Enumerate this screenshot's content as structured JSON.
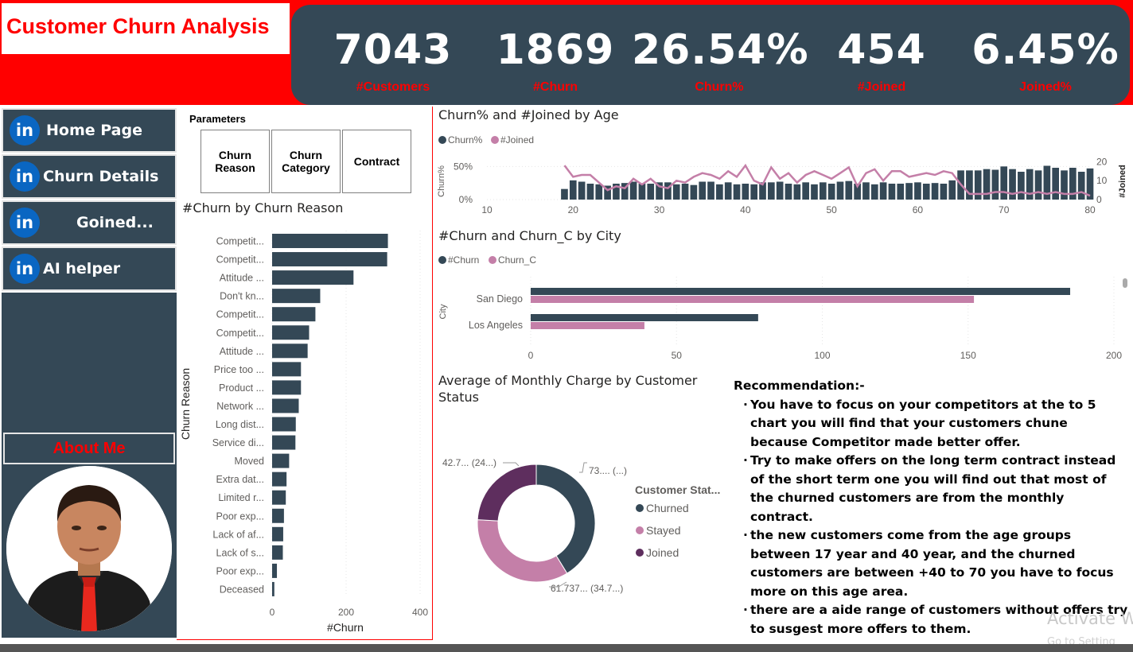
{
  "header": {
    "title": "Customer Churn Analysis",
    "kpis": [
      {
        "value": "7043",
        "label": "#Customers"
      },
      {
        "value": "1869",
        "label": "#Churn"
      },
      {
        "value": "26.54%",
        "label": "Churn%"
      },
      {
        "value": "454",
        "label": "#Joined"
      },
      {
        "value": "6.45%",
        "label": "Joined%"
      }
    ]
  },
  "sidebar": {
    "items": [
      {
        "label": "Home Page",
        "icon": "linkedin-icon",
        "icon_text": "in"
      },
      {
        "label": "Churn Details",
        "icon": "linkedin-icon",
        "icon_text": "in"
      },
      {
        "label": "Goined...",
        "icon": "linkedin-icon",
        "icon_text": "in"
      },
      {
        "label": "AI helper",
        "icon": "linkedin-icon",
        "icon_text": "in"
      }
    ],
    "about_label": "About Me",
    "photo_icon": "profile-photo"
  },
  "parameters": {
    "title": "Parameters",
    "buttons": [
      "Churn Reason",
      "Churn Category",
      "Contract"
    ]
  },
  "colors": {
    "dark": "#344856",
    "pink": "#c47fa8",
    "purple": "#5e2e5e",
    "red": "#ff0000"
  },
  "charts": {
    "age": {
      "title": "Churn% and #Joined by Age",
      "legend": [
        "Churn%",
        "#Joined"
      ],
      "y_left_label": "Churn%",
      "y_right_label": "#Joined",
      "y_left_ticks": [
        "50%",
        "0%"
      ],
      "y_right_ticks": [
        "20",
        "10",
        "0"
      ],
      "x_ticks": [
        "10",
        "20",
        "30",
        "40",
        "50",
        "60",
        "70",
        "80"
      ]
    },
    "city": {
      "title": "#Churn and Churn_C by City",
      "legend": [
        "#Churn",
        "Churn_C"
      ],
      "y_label": "City",
      "x_ticks": [
        "0",
        "50",
        "100",
        "150",
        "200"
      ]
    },
    "reason": {
      "title": "#Churn by Churn Reason",
      "y_label": "Churn Reason",
      "x_label": "#Churn",
      "x_ticks": [
        "0",
        "200",
        "400"
      ]
    },
    "donut": {
      "title": "Average of Monthly Charge by Customer Status",
      "legend_title": "Customer Stat...",
      "legend": [
        "Churned",
        "Stayed",
        "Joined"
      ],
      "labels": [
        "73.... (...)",
        "61.737... (34.7...)",
        "42.7... (24...)"
      ]
    }
  },
  "chart_data": [
    {
      "type": "bar",
      "title": "#Churn by Churn Reason",
      "xlabel": "#Churn",
      "ylabel": "Churn Reason",
      "xlim": [
        0,
        400
      ],
      "categories": [
        "Competit...",
        "Competit...",
        "Attitude ...",
        "Don't kn...",
        "Competit...",
        "Competit...",
        "Attitude ...",
        "Price too ...",
        "Product ...",
        "Network ...",
        "Long dist...",
        "Service di...",
        "Moved",
        "Extra dat...",
        "Limited r...",
        "Poor exp...",
        "Lack of af...",
        "Lack of s...",
        "Poor exp...",
        "Deceased"
      ],
      "values": [
        313,
        311,
        220,
        130,
        117,
        100,
        96,
        78,
        78,
        72,
        64,
        63,
        46,
        39,
        37,
        32,
        30,
        29,
        13,
        6
      ]
    },
    {
      "type": "bar",
      "title": "#Churn and Churn_C by City",
      "ylabel": "City",
      "xlim": [
        0,
        200
      ],
      "categories": [
        "San Diego",
        "Los Angeles"
      ],
      "series": [
        {
          "name": "#Churn",
          "values": [
            185,
            78
          ]
        },
        {
          "name": "Churn_C",
          "values": [
            152,
            39
          ]
        }
      ]
    },
    {
      "type": "bar",
      "title": "Churn% and #Joined by Age",
      "x": [
        19,
        20,
        21,
        22,
        23,
        24,
        25,
        26,
        27,
        28,
        29,
        30,
        31,
        32,
        33,
        34,
        35,
        36,
        37,
        38,
        39,
        40,
        41,
        42,
        43,
        44,
        45,
        46,
        47,
        48,
        49,
        50,
        51,
        52,
        53,
        54,
        55,
        56,
        57,
        58,
        59,
        60,
        61,
        62,
        63,
        64,
        65,
        66,
        67,
        68,
        69,
        70,
        71,
        72,
        73,
        74,
        75,
        76,
        77,
        78,
        79,
        80
      ],
      "xlim": [
        10,
        80
      ],
      "series": [
        {
          "name": "Churn%",
          "axis": "left",
          "ylim": [
            0,
            0.6
          ],
          "values": [
            0.16,
            0.29,
            0.27,
            0.24,
            0.23,
            0.21,
            0.24,
            0.25,
            0.27,
            0.24,
            0.24,
            0.26,
            0.26,
            0.23,
            0.24,
            0.22,
            0.27,
            0.27,
            0.23,
            0.26,
            0.23,
            0.24,
            0.23,
            0.26,
            0.26,
            0.27,
            0.24,
            0.23,
            0.26,
            0.23,
            0.26,
            0.24,
            0.27,
            0.28,
            0.24,
            0.26,
            0.23,
            0.26,
            0.24,
            0.24,
            0.25,
            0.26,
            0.24,
            0.25,
            0.24,
            0.29,
            0.44,
            0.44,
            0.44,
            0.46,
            0.45,
            0.5,
            0.46,
            0.42,
            0.46,
            0.44,
            0.51,
            0.48,
            0.44,
            0.48,
            0.42,
            0.47
          ]
        },
        {
          "name": "#Joined",
          "axis": "right",
          "type": "line",
          "ylim": [
            0,
            21
          ],
          "values": [
            18,
            12,
            13,
            13,
            9,
            5,
            7,
            6,
            11,
            8,
            11,
            7,
            6,
            10,
            9,
            12,
            14,
            13,
            11,
            15,
            12,
            18,
            10,
            8,
            17,
            11,
            14,
            9,
            13,
            15,
            13,
            11,
            14,
            17,
            7,
            14,
            16,
            10,
            15,
            15,
            12,
            13,
            14,
            13,
            15,
            14,
            8,
            3,
            3,
            3,
            4,
            4,
            3,
            4,
            3,
            4,
            3,
            4,
            3,
            3,
            4,
            2
          ]
        }
      ]
    },
    {
      "type": "pie",
      "title": "Average of Monthly Charge by Customer Status",
      "categories": [
        "Churned",
        "Stayed",
        "Joined"
      ],
      "values": [
        73.35,
        61.737,
        42.775
      ]
    }
  ]
}
